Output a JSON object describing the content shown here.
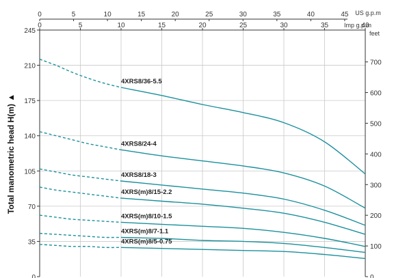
{
  "chart_data": {
    "type": "line",
    "title": "",
    "ylabel": "Total manometric head H(m)",
    "ylabel_arrow": "▲",
    "y_left": {
      "unit": "m",
      "ylim": [
        0,
        245
      ],
      "ticks": [
        0,
        35,
        70,
        105,
        140,
        175,
        210,
        245
      ]
    },
    "y_right": {
      "unit": "feet",
      "ticks": [
        0,
        100,
        200,
        300,
        400,
        500,
        600,
        700
      ]
    },
    "x_top": {
      "unit": "US g.p.m",
      "ticks": [
        0,
        5,
        10,
        15,
        20,
        25,
        30,
        35,
        40,
        45
      ]
    },
    "x_bottom": {
      "unit": "Imp g.p.m",
      "xlim": [
        0,
        40
      ],
      "ticks": [
        0,
        5,
        10,
        15,
        20,
        25,
        30,
        35,
        40
      ]
    },
    "grid": true,
    "series_color": "#1a8f9c",
    "series": [
      {
        "name": "4XRS8/36-5.5",
        "dashed": {
          "x": [
            0,
            2,
            4,
            6,
            8,
            10
          ],
          "y": [
            216,
            210,
            203,
            197,
            192,
            188
          ]
        },
        "solid": {
          "x": [
            10,
            15,
            20,
            25,
            30,
            35,
            40
          ],
          "y": [
            188,
            180,
            171,
            163,
            153,
            134,
            102
          ]
        }
      },
      {
        "name": "4XRS8/24-4",
        "dashed": {
          "x": [
            0,
            2,
            4,
            6,
            8,
            10
          ],
          "y": [
            144,
            140,
            136,
            132,
            129,
            126
          ]
        },
        "solid": {
          "x": [
            10,
            15,
            20,
            25,
            30,
            35,
            40
          ],
          "y": [
            126,
            120,
            115,
            110,
            103,
            90,
            68
          ]
        }
      },
      {
        "name": "4XRS8/18-3",
        "dashed": {
          "x": [
            0,
            2,
            4,
            6,
            8,
            10
          ],
          "y": [
            107,
            104,
            101,
            99,
            97,
            95
          ]
        },
        "solid": {
          "x": [
            10,
            15,
            20,
            25,
            30,
            35,
            40
          ],
          "y": [
            95,
            91,
            87,
            83,
            77,
            66,
            51
          ]
        }
      },
      {
        "name": "4XRS(m)8/15-2.2",
        "dashed": {
          "x": [
            0,
            2,
            4,
            6,
            8,
            10
          ],
          "y": [
            89,
            86,
            84,
            82,
            80,
            78
          ]
        },
        "solid": {
          "x": [
            10,
            15,
            20,
            25,
            30,
            35,
            40
          ],
          "y": [
            78,
            75,
            72,
            68,
            63,
            54,
            42
          ]
        }
      },
      {
        "name": "4XRS(m)8/10-1.5",
        "dashed": {
          "x": [
            0,
            2,
            4,
            6,
            8,
            10
          ],
          "y": [
            61,
            59,
            57,
            56,
            55,
            54
          ]
        },
        "solid": {
          "x": [
            10,
            15,
            20,
            25,
            30,
            35,
            40
          ],
          "y": [
            54,
            52,
            50,
            48,
            44,
            38,
            30
          ]
        }
      },
      {
        "name": "4XRS(m)8/7-1.1",
        "dashed": {
          "x": [
            0,
            2,
            4,
            6,
            8,
            10
          ],
          "y": [
            43,
            42,
            41,
            40,
            39,
            39
          ]
        },
        "solid": {
          "x": [
            10,
            15,
            20,
            25,
            30,
            35,
            40
          ],
          "y": [
            39,
            38,
            36,
            35,
            33,
            29,
            24
          ]
        }
      },
      {
        "name": "4XRS(m)8/5-0.75",
        "dashed": {
          "x": [
            0,
            2,
            4,
            6,
            8,
            10
          ],
          "y": [
            32,
            31,
            30,
            30,
            29,
            29
          ]
        },
        "solid": {
          "x": [
            10,
            15,
            20,
            25,
            30,
            35,
            40
          ],
          "y": [
            29,
            28,
            27,
            26,
            25,
            22,
            18
          ]
        }
      }
    ]
  }
}
